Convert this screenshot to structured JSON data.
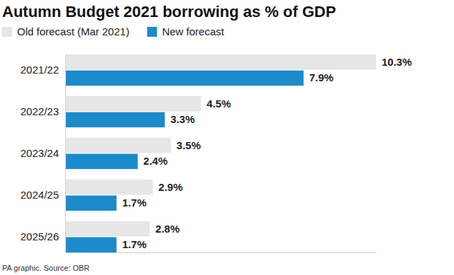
{
  "chart_data": {
    "type": "bar",
    "orientation": "horizontal",
    "title": "Autumn Budget 2021 borrowing as % of GDP",
    "source": "PA graphic. Source: OBR",
    "categories": [
      "2021/22",
      "2022/23",
      "2023/24",
      "2024/25",
      "2025/26"
    ],
    "series": [
      {
        "name": "Old forecast (Mar 2021)",
        "color": "#e6e6e6",
        "values": [
          10.3,
          4.5,
          3.5,
          2.9,
          2.8
        ],
        "value_labels": [
          "10.3%",
          "4.5%",
          "3.5%",
          "2.9%",
          "2.8%"
        ]
      },
      {
        "name": "New forecast",
        "color": "#1b8bcb",
        "values": [
          7.9,
          3.3,
          2.4,
          1.7,
          1.7
        ],
        "value_labels": [
          "7.9%",
          "3.3%",
          "2.4%",
          "1.7%",
          "1.7%"
        ]
      }
    ],
    "xlim": [
      0,
      10.3
    ],
    "data_labels": true,
    "tick_labels": "y",
    "legend": "top-left",
    "grid": false
  }
}
